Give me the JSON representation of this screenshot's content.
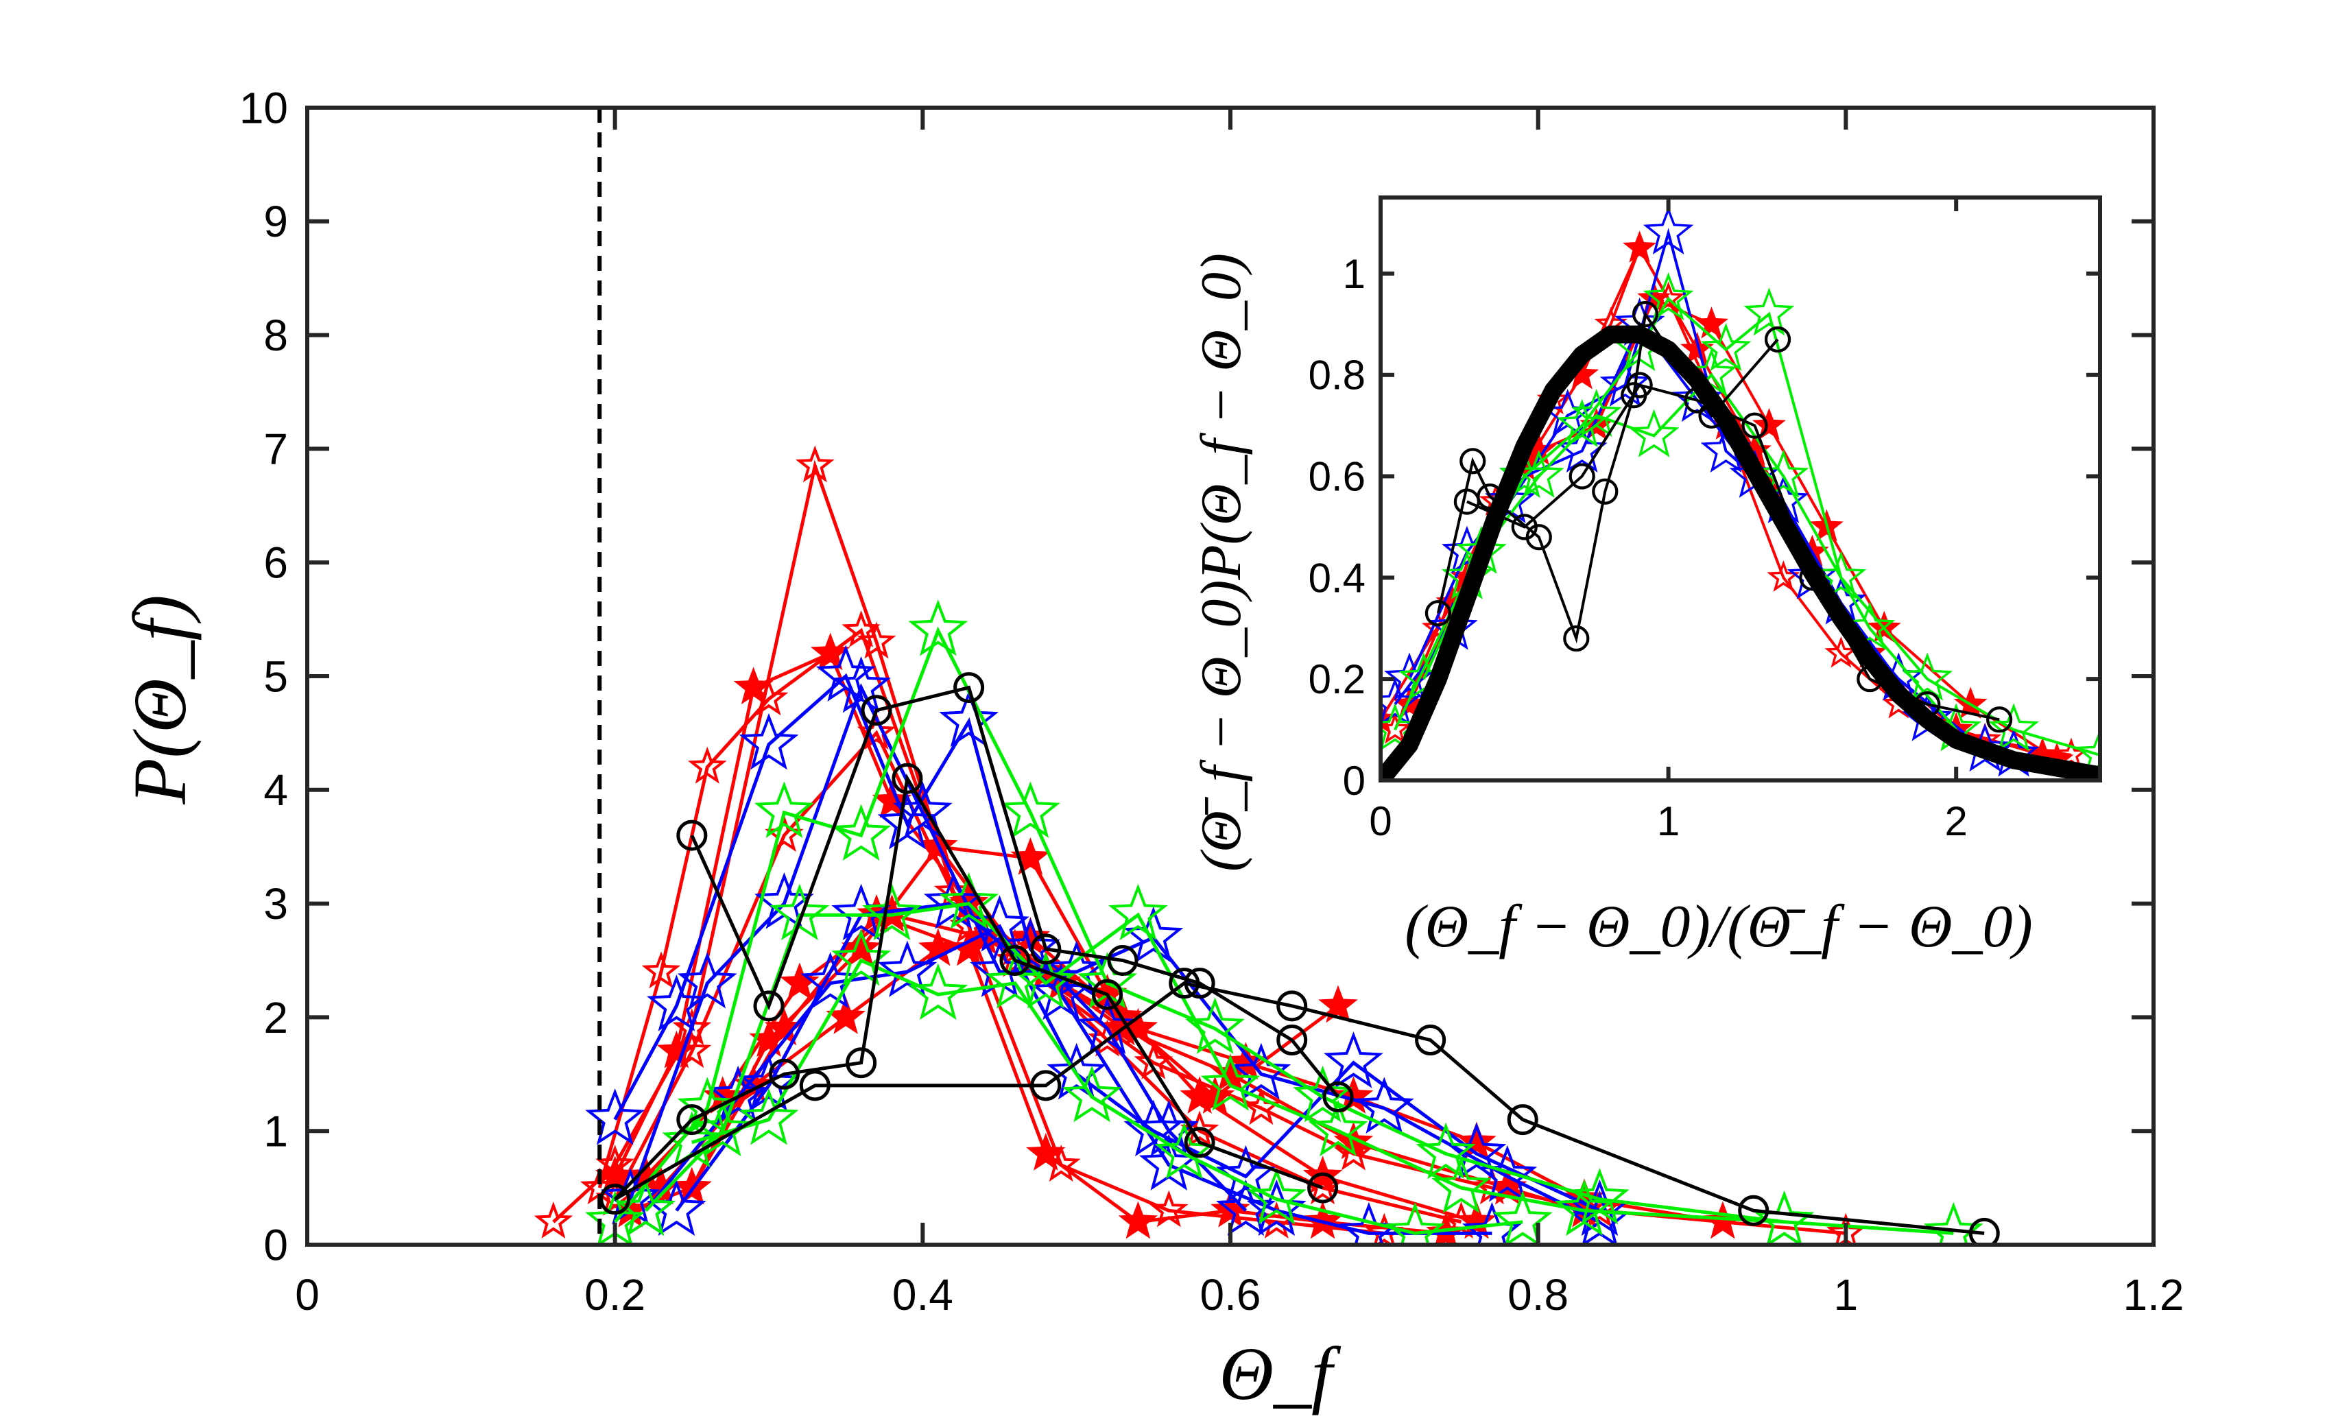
{
  "chart_data": [
    {
      "type": "line",
      "xlim": [
        0,
        1.2
      ],
      "ylim": [
        0,
        10
      ],
      "xticks": [
        "0",
        "0.2",
        "0.4",
        "0.6",
        "0.8",
        "1",
        "1.2"
      ],
      "xtick_values": [
        0,
        0.2,
        0.4,
        0.6,
        0.8,
        1.0,
        1.2
      ],
      "yticks": [
        "0",
        "1",
        "2",
        "3",
        "4",
        "5",
        "6",
        "7",
        "8",
        "9",
        "10"
      ],
      "ytick_values": [
        0,
        1,
        2,
        3,
        4,
        5,
        6,
        7,
        8,
        9,
        10
      ],
      "xlabel": "Θ_f",
      "ylabel": "P(Θ_f)",
      "reference_line": {
        "x": 0.19,
        "style": "dashed"
      },
      "series": [
        {
          "name": "red-star-small-1",
          "color": "#ff0000",
          "marker": "star-open-small",
          "x": [
            0.16,
            0.2,
            0.25,
            0.33,
            0.37,
            0.42,
            0.46,
            0.55,
            0.62,
            0.68,
            0.77,
            0.84,
            0.92,
            1.0
          ],
          "y": [
            0.2,
            0.7,
            1.9,
            6.85,
            5.3,
            3.1,
            2.5,
            1.6,
            1.2,
            0.8,
            0.5,
            0.3,
            0.2,
            0.1
          ]
        },
        {
          "name": "red-star-small-2",
          "color": "#ff0000",
          "marker": "star-open-small",
          "x": [
            0.19,
            0.23,
            0.26,
            0.3,
            0.36,
            0.41,
            0.46,
            0.52,
            0.58,
            0.66,
            0.75
          ],
          "y": [
            0.5,
            2.4,
            4.2,
            4.8,
            5.4,
            3.5,
            2.6,
            1.8,
            1.0,
            0.5,
            0.2
          ]
        },
        {
          "name": "red-star-small-3",
          "color": "#ff0000",
          "marker": "star-open-small",
          "x": [
            0.2,
            0.25,
            0.31,
            0.37,
            0.43,
            0.49,
            0.56,
            0.63,
            0.7
          ],
          "y": [
            0.4,
            1.7,
            3.6,
            4.5,
            2.8,
            0.7,
            0.3,
            0.2,
            0.1
          ]
        },
        {
          "name": "red-star-filled-1",
          "color": "#ff0000",
          "marker": "star-filled",
          "x": [
            0.2,
            0.24,
            0.29,
            0.34,
            0.38,
            0.43,
            0.48,
            0.53,
            0.6,
            0.68,
            0.78,
            0.83
          ],
          "y": [
            0.6,
            1.7,
            4.9,
            5.2,
            3.9,
            3.0,
            2.4,
            1.9,
            1.5,
            0.9,
            0.5,
            0.3
          ]
        },
        {
          "name": "red-star-filled-2",
          "color": "#ff0000",
          "marker": "star-filled",
          "x": [
            0.21,
            0.25,
            0.3,
            0.36,
            0.41,
            0.47,
            0.52,
            0.58,
            0.66,
            0.76
          ],
          "y": [
            0.3,
            0.5,
            1.8,
            2.6,
            3.5,
            3.4,
            2.2,
            1.3,
            0.6,
            0.2
          ]
        },
        {
          "name": "red-star-filled-3",
          "color": "#ff0000",
          "marker": "star-filled",
          "x": [
            0.22,
            0.27,
            0.32,
            0.38,
            0.44,
            0.49,
            0.54,
            0.61,
            0.68,
            0.76,
            0.83,
            0.92
          ],
          "y": [
            0.6,
            1.3,
            2.3,
            2.9,
            2.7,
            2.3,
            1.9,
            1.6,
            1.3,
            0.9,
            0.4,
            0.2
          ]
        },
        {
          "name": "red-star-filled-4",
          "color": "#ff0000",
          "marker": "star-filled",
          "x": [
            0.23,
            0.29,
            0.35,
            0.41,
            0.47,
            0.53,
            0.59,
            0.67
          ],
          "y": [
            0.5,
            1.4,
            2.0,
            2.6,
            2.7,
            2.0,
            1.3,
            2.1
          ]
        },
        {
          "name": "red-star-filled-5",
          "color": "#ff0000",
          "marker": "star-filled",
          "x": [
            0.25,
            0.31,
            0.37,
            0.43,
            0.48,
            0.54,
            0.6,
            0.66,
            0.74
          ],
          "y": [
            0.5,
            1.9,
            2.9,
            2.6,
            0.8,
            0.2,
            0.3,
            0.2,
            0.1
          ]
        },
        {
          "name": "blue-star-1",
          "color": "#0000ff",
          "marker": "star-open-large",
          "x": [
            0.2,
            0.24,
            0.3,
            0.35,
            0.39,
            0.43,
            0.47,
            0.52,
            0.56,
            0.61
          ],
          "y": [
            1.1,
            2.1,
            4.4,
            5.0,
            3.7,
            4.6,
            2.6,
            1.9,
            1.0,
            0.3
          ]
        },
        {
          "name": "blue-star-2",
          "color": "#0000ff",
          "marker": "star-open-large",
          "x": [
            0.21,
            0.26,
            0.31,
            0.36,
            0.4,
            0.45,
            0.5,
            0.55,
            0.62,
            0.7,
            0.78,
            0.84
          ],
          "y": [
            0.4,
            2.3,
            3.0,
            4.9,
            3.8,
            2.4,
            2.4,
            2.7,
            1.5,
            1.2,
            0.6,
            0.2
          ]
        },
        {
          "name": "blue-star-3",
          "color": "#0000ff",
          "marker": "star-open-large",
          "x": [
            0.22,
            0.28,
            0.34,
            0.39,
            0.45,
            0.5,
            0.55,
            0.61,
            0.68,
            0.76,
            0.84
          ],
          "y": [
            0.3,
            1.3,
            2.3,
            2.4,
            2.8,
            1.5,
            1.0,
            0.6,
            1.6,
            0.8,
            0.3
          ]
        },
        {
          "name": "blue-star-4",
          "color": "#0000ff",
          "marker": "star-open-large",
          "x": [
            0.24,
            0.3,
            0.36,
            0.42,
            0.49,
            0.56,
            0.63,
            0.69,
            0.77
          ],
          "y": [
            0.3,
            1.4,
            2.9,
            3.0,
            2.2,
            0.7,
            0.3,
            0.1,
            0.1
          ]
        },
        {
          "name": "green-star-1",
          "color": "#00ee00",
          "marker": "star-open-large",
          "x": [
            0.2,
            0.26,
            0.31,
            0.36,
            0.41,
            0.47,
            0.52,
            0.59,
            0.66,
            0.74,
            0.84,
            0.96,
            1.07
          ],
          "y": [
            0.2,
            1.2,
            3.8,
            3.6,
            5.4,
            3.8,
            2.3,
            1.9,
            1.3,
            0.8,
            0.4,
            0.2,
            0.1
          ]
        },
        {
          "name": "green-star-2",
          "color": "#00ee00",
          "marker": "star-open-large",
          "x": [
            0.22,
            0.27,
            0.32,
            0.38,
            0.43,
            0.48,
            0.54,
            0.6,
            0.67,
            0.75,
            0.83,
            0.96
          ],
          "y": [
            0.3,
            1.0,
            2.9,
            2.9,
            3.0,
            2.3,
            2.9,
            1.4,
            1.0,
            0.5,
            0.3,
            0.2
          ]
        },
        {
          "name": "green-star-3",
          "color": "#00ee00",
          "marker": "star-open-large",
          "x": [
            0.25,
            0.3,
            0.36,
            0.41,
            0.46,
            0.51,
            0.57,
            0.63,
            0.72,
            0.79
          ],
          "y": [
            0.9,
            1.1,
            2.5,
            2.2,
            2.3,
            1.3,
            0.8,
            0.4,
            0.1,
            0.2
          ]
        },
        {
          "name": "black-circle-1",
          "color": "#000000",
          "marker": "circle-open",
          "x": [
            0.25,
            0.3,
            0.37,
            0.43,
            0.48,
            0.53,
            0.58,
            0.64,
            0.67
          ],
          "y": [
            3.6,
            2.1,
            4.7,
            4.9,
            2.6,
            2.5,
            2.3,
            1.8,
            1.3
          ]
        },
        {
          "name": "black-circle-2",
          "color": "#000000",
          "marker": "circle-open",
          "x": [
            0.2,
            0.25,
            0.31,
            0.36,
            0.39,
            0.46,
            0.52,
            0.58,
            0.66
          ],
          "y": [
            0.4,
            1.1,
            1.5,
            1.6,
            4.1,
            2.5,
            2.2,
            0.9,
            0.5
          ]
        },
        {
          "name": "black-circle-3",
          "color": "#000000",
          "marker": "circle-open",
          "x": [
            0.2,
            0.33,
            0.48,
            0.57,
            0.64,
            0.73,
            0.79,
            0.94,
            1.09
          ],
          "y": [
            0.4,
            1.4,
            1.4,
            2.3,
            2.1,
            1.8,
            1.1,
            0.3,
            0.1
          ]
        }
      ]
    },
    {
      "type": "line",
      "inset": true,
      "xlim": [
        0,
        2.5
      ],
      "ylim": [
        0,
        1.15
      ],
      "xticks": [
        "0",
        "1",
        "2"
      ],
      "xtick_values": [
        0,
        1,
        2
      ],
      "yticks": [
        "0",
        "0.2",
        "0.4",
        "0.6",
        "0.8",
        "1"
      ],
      "ytick_values": [
        0,
        0.2,
        0.4,
        0.6,
        0.8,
        1.0
      ],
      "xlabel": "(Θ_f − Θ_0)/(Θ̄_f − Θ_0)",
      "ylabel": "(Θ̄_f − Θ_0)P(Θ_f − Θ_0)",
      "fit_curve": {
        "color": "#000000",
        "style": "thick",
        "x": [
          0,
          0.1,
          0.2,
          0.3,
          0.4,
          0.5,
          0.6,
          0.7,
          0.8,
          0.9,
          1.0,
          1.1,
          1.2,
          1.3,
          1.4,
          1.5,
          1.6,
          1.7,
          1.8,
          1.9,
          2.0,
          2.2,
          2.4,
          2.5
        ],
        "y": [
          0.0,
          0.07,
          0.2,
          0.36,
          0.52,
          0.66,
          0.77,
          0.84,
          0.88,
          0.88,
          0.85,
          0.79,
          0.71,
          0.61,
          0.51,
          0.41,
          0.32,
          0.24,
          0.17,
          0.12,
          0.08,
          0.04,
          0.02,
          0.01
        ]
      },
      "series": [
        {
          "name": "inset-red-1",
          "color": "#ff0000",
          "marker": "star-open-small",
          "x": [
            0.05,
            0.2,
            0.4,
            0.6,
            0.8,
            0.9,
            1.0,
            1.2,
            1.4,
            1.6,
            1.8,
            2.1,
            2.4
          ],
          "y": [
            0.1,
            0.3,
            0.55,
            0.75,
            0.9,
            1.05,
            0.95,
            0.7,
            0.4,
            0.25,
            0.15,
            0.08,
            0.05
          ]
        },
        {
          "name": "inset-red-2",
          "color": "#ff0000",
          "marker": "star-filled",
          "x": [
            0.1,
            0.3,
            0.5,
            0.7,
            0.9,
            1.1,
            1.3,
            1.5,
            1.7,
            2.0,
            2.3
          ],
          "y": [
            0.15,
            0.4,
            0.62,
            0.8,
            1.05,
            0.85,
            0.65,
            0.45,
            0.25,
            0.1,
            0.05
          ]
        },
        {
          "name": "inset-red-3",
          "color": "#ff0000",
          "marker": "star-filled",
          "x": [
            0.0,
            0.25,
            0.55,
            0.75,
            0.95,
            1.15,
            1.35,
            1.55,
            1.75,
            2.05,
            2.35
          ],
          "y": [
            0.12,
            0.35,
            0.65,
            0.7,
            0.95,
            0.9,
            0.7,
            0.5,
            0.3,
            0.15,
            0.04
          ]
        },
        {
          "name": "inset-blue-1",
          "color": "#0000ff",
          "marker": "star-open-large",
          "x": [
            0.05,
            0.25,
            0.45,
            0.65,
            0.85,
            1.0,
            1.2,
            1.4,
            1.6,
            1.9,
            2.2
          ],
          "y": [
            0.15,
            0.3,
            0.55,
            0.72,
            0.78,
            1.08,
            0.65,
            0.55,
            0.35,
            0.12,
            0.05
          ]
        },
        {
          "name": "inset-blue-2",
          "color": "#0000ff",
          "marker": "star-open-large",
          "x": [
            0.1,
            0.3,
            0.5,
            0.7,
            0.9,
            1.1,
            1.3,
            1.5,
            1.8,
            2.1
          ],
          "y": [
            0.2,
            0.45,
            0.6,
            0.65,
            0.9,
            0.75,
            0.6,
            0.4,
            0.2,
            0.06
          ]
        },
        {
          "name": "inset-green-1",
          "color": "#00ee00",
          "marker": "star-open-large",
          "x": [
            0.05,
            0.3,
            0.5,
            0.7,
            0.9,
            1.0,
            1.2,
            1.35,
            1.6,
            1.9,
            2.2,
            2.5
          ],
          "y": [
            0.1,
            0.4,
            0.6,
            0.7,
            0.85,
            0.95,
            0.85,
            0.92,
            0.4,
            0.2,
            0.1,
            0.05
          ]
        },
        {
          "name": "inset-green-2",
          "color": "#00ee00",
          "marker": "star-open-large",
          "x": [
            0.15,
            0.35,
            0.55,
            0.75,
            0.95,
            1.15,
            1.4,
            1.7,
            2.0
          ],
          "y": [
            0.2,
            0.45,
            0.6,
            0.72,
            0.68,
            0.8,
            0.6,
            0.3,
            0.1
          ]
        },
        {
          "name": "inset-black-1",
          "color": "#000000",
          "marker": "circle-open",
          "x": [
            0.2,
            0.32,
            0.38,
            0.55,
            0.68,
            0.78,
            0.88,
            0.92,
            1.15,
            1.38
          ],
          "y": [
            0.33,
            0.63,
            0.56,
            0.48,
            0.28,
            0.57,
            0.76,
            0.92,
            0.72,
            0.87
          ]
        },
        {
          "name": "inset-black-2",
          "color": "#000000",
          "marker": "circle-open",
          "x": [
            0.3,
            0.5,
            0.7,
            0.9,
            1.1,
            1.3,
            1.5,
            1.7,
            1.9,
            2.15
          ],
          "y": [
            0.55,
            0.5,
            0.6,
            0.78,
            0.75,
            0.7,
            0.4,
            0.2,
            0.15,
            0.12
          ]
        }
      ]
    }
  ]
}
